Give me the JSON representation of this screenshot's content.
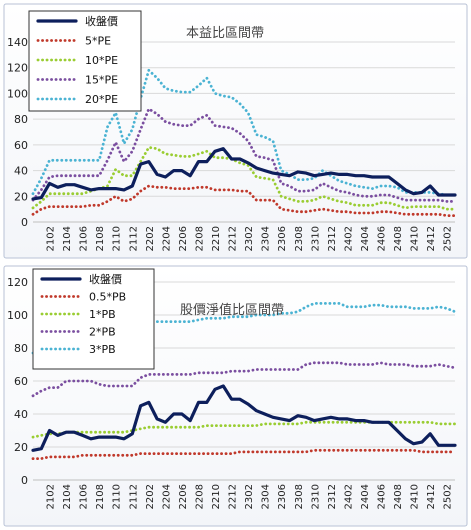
{
  "x_labels": [
    "2102",
    "2104",
    "2106",
    "2108",
    "2110",
    "2112",
    "2202",
    "2204",
    "2206",
    "2208",
    "2210",
    "2212",
    "2302",
    "2304",
    "2306",
    "2308",
    "2310",
    "2312",
    "2402",
    "2404",
    "2406",
    "2408",
    "2410",
    "2412",
    "2502"
  ],
  "chart_data": [
    {
      "type": "line",
      "title": "本益比區間帶",
      "xlabel": "",
      "ylabel": "",
      "ylim": [
        0,
        140
      ],
      "yticks": [
        0,
        20,
        40,
        60,
        80,
        100,
        120,
        140
      ],
      "x": [
        "2012",
        "2101",
        "2102",
        "2103",
        "2104",
        "2105",
        "2106",
        "2107",
        "2108",
        "2109",
        "2110",
        "2111",
        "2112",
        "2201",
        "2202",
        "2203",
        "2204",
        "2205",
        "2206",
        "2207",
        "2208",
        "2209",
        "2210",
        "2211",
        "2212",
        "2301",
        "2302",
        "2303",
        "2304",
        "2305",
        "2306",
        "2307",
        "2308",
        "2309",
        "2310",
        "2311",
        "2312",
        "2401",
        "2402",
        "2403",
        "2404",
        "2405",
        "2406",
        "2407",
        "2408",
        "2409",
        "2410",
        "2411",
        "2412",
        "2501",
        "2502",
        "2503"
      ],
      "legend_position": "top-left",
      "grid": true,
      "series": [
        {
          "name": "收盤價",
          "color": "#0d1f5c",
          "style": "solid",
          "values": [
            18,
            19,
            30,
            27,
            29,
            29,
            27,
            25,
            26,
            26,
            26,
            25,
            28,
            45,
            47,
            37,
            35,
            40,
            40,
            36,
            47,
            47,
            55,
            57,
            49,
            49,
            46,
            42,
            40,
            38,
            37,
            36,
            39,
            38,
            36,
            37,
            38,
            37,
            37,
            36,
            36,
            35,
            35,
            35,
            30,
            25,
            22,
            23,
            28,
            21,
            21,
            21
          ]
        },
        {
          "name": "5*PE",
          "color": "#c0392b",
          "style": "dotted",
          "values": [
            6,
            10,
            12,
            12,
            12,
            12,
            12,
            13,
            13,
            16,
            20,
            16,
            18,
            24,
            28,
            27,
            27,
            26,
            26,
            26,
            27,
            27,
            25,
            25,
            25,
            24,
            24,
            17,
            17,
            17,
            10,
            9,
            8,
            8,
            9,
            10,
            9,
            8,
            8,
            7,
            7,
            7,
            8,
            8,
            7,
            6,
            6,
            6,
            6,
            6,
            5,
            5
          ]
        },
        {
          "name": "10*PE",
          "color": "#9acd32",
          "style": "dotted",
          "values": [
            11,
            16,
            22,
            22,
            22,
            22,
            22,
            24,
            26,
            28,
            41,
            36,
            36,
            47,
            58,
            57,
            53,
            52,
            51,
            51,
            53,
            55,
            50,
            50,
            49,
            46,
            44,
            35,
            34,
            33,
            20,
            18,
            16,
            16,
            17,
            20,
            18,
            16,
            15,
            13,
            13,
            13,
            15,
            15,
            13,
            11,
            12,
            12,
            12,
            12,
            10,
            10
          ]
        },
        {
          "name": "15*PE",
          "color": "#7b4fa0",
          "style": "dotted",
          "values": [
            17,
            25,
            35,
            36,
            36,
            36,
            36,
            36,
            36,
            48,
            62,
            47,
            55,
            72,
            88,
            84,
            78,
            76,
            75,
            75,
            80,
            83,
            75,
            74,
            73,
            69,
            63,
            51,
            50,
            48,
            30,
            28,
            24,
            24,
            25,
            30,
            27,
            24,
            23,
            21,
            20,
            20,
            21,
            21,
            19,
            17,
            17,
            17,
            17,
            17,
            16,
            16
          ]
        },
        {
          "name": "20*PE",
          "color": "#4bb3d3",
          "style": "dotted",
          "values": [
            22,
            34,
            48,
            48,
            48,
            48,
            48,
            48,
            48,
            74,
            85,
            61,
            72,
            96,
            118,
            112,
            104,
            102,
            101,
            101,
            106,
            112,
            100,
            98,
            97,
            92,
            85,
            68,
            66,
            63,
            40,
            37,
            33,
            33,
            34,
            40,
            36,
            32,
            30,
            28,
            27,
            26,
            28,
            28,
            27,
            23,
            23,
            23,
            23,
            22,
            21,
            21
          ]
        }
      ]
    },
    {
      "type": "line",
      "title": "股價淨值比區間帶",
      "xlabel": "",
      "ylabel": "",
      "ylim": [
        0,
        120
      ],
      "yticks": [
        0,
        20,
        40,
        60,
        80,
        100,
        120
      ],
      "x": [
        "2012",
        "2101",
        "2102",
        "2103",
        "2104",
        "2105",
        "2106",
        "2107",
        "2108",
        "2109",
        "2110",
        "2111",
        "2112",
        "2201",
        "2202",
        "2203",
        "2204",
        "2205",
        "2206",
        "2207",
        "2208",
        "2209",
        "2210",
        "2211",
        "2212",
        "2301",
        "2302",
        "2303",
        "2304",
        "2305",
        "2306",
        "2307",
        "2308",
        "2309",
        "2310",
        "2311",
        "2312",
        "2401",
        "2402",
        "2403",
        "2404",
        "2405",
        "2406",
        "2407",
        "2408",
        "2409",
        "2410",
        "2411",
        "2412",
        "2501",
        "2502",
        "2503"
      ],
      "legend_position": "top-left",
      "grid": true,
      "series": [
        {
          "name": "收盤價",
          "color": "#0d1f5c",
          "style": "solid",
          "values": [
            18,
            19,
            30,
            27,
            29,
            29,
            27,
            25,
            26,
            26,
            26,
            25,
            28,
            45,
            47,
            37,
            35,
            40,
            40,
            36,
            47,
            47,
            55,
            57,
            49,
            49,
            46,
            42,
            40,
            38,
            37,
            36,
            39,
            38,
            36,
            37,
            38,
            37,
            37,
            36,
            36,
            35,
            35,
            35,
            30,
            25,
            22,
            23,
            28,
            21,
            21,
            21
          ]
        },
        {
          "name": "0.5*PB",
          "color": "#c0392b",
          "style": "dotted",
          "values": [
            13,
            13,
            14,
            14,
            14,
            14,
            15,
            15,
            15,
            15,
            15,
            15,
            15,
            16,
            16,
            16,
            16,
            16,
            16,
            16,
            16,
            16,
            16,
            16,
            16,
            17,
            17,
            17,
            17,
            17,
            17,
            17,
            17,
            17,
            18,
            18,
            18,
            18,
            18,
            18,
            18,
            18,
            18,
            18,
            18,
            18,
            18,
            17,
            17,
            17,
            17,
            17
          ]
        },
        {
          "name": "1*PB",
          "color": "#9acd32",
          "style": "dotted",
          "values": [
            26,
            27,
            28,
            28,
            29,
            29,
            29,
            29,
            29,
            29,
            29,
            29,
            30,
            31,
            32,
            32,
            32,
            32,
            32,
            32,
            32,
            33,
            33,
            33,
            33,
            33,
            33,
            33,
            34,
            34,
            34,
            34,
            34,
            35,
            35,
            35,
            35,
            35,
            35,
            35,
            35,
            35,
            35,
            35,
            35,
            35,
            35,
            35,
            35,
            34,
            34,
            34
          ]
        },
        {
          "name": "2*PB",
          "color": "#7b4fa0",
          "style": "dotted",
          "values": [
            51,
            54,
            56,
            56,
            60,
            60,
            60,
            60,
            58,
            57,
            57,
            57,
            57,
            62,
            64,
            64,
            64,
            64,
            64,
            64,
            65,
            65,
            65,
            65,
            66,
            66,
            66,
            67,
            67,
            67,
            67,
            67,
            67,
            70,
            71,
            71,
            71,
            71,
            70,
            70,
            70,
            70,
            71,
            70,
            70,
            70,
            69,
            69,
            69,
            70,
            69,
            68
          ]
        },
        {
          "name": "3*PB",
          "color": "#4bb3d3",
          "style": "dotted",
          "values": [
            77,
            81,
            84,
            85,
            89,
            90,
            90,
            90,
            87,
            86,
            86,
            86,
            86,
            93,
            96,
            96,
            96,
            96,
            96,
            96,
            97,
            98,
            98,
            98,
            99,
            99,
            99,
            100,
            100,
            100,
            101,
            101,
            102,
            105,
            107,
            107,
            107,
            107,
            105,
            105,
            105,
            106,
            106,
            105,
            105,
            105,
            104,
            104,
            104,
            105,
            104,
            102
          ]
        }
      ]
    }
  ]
}
